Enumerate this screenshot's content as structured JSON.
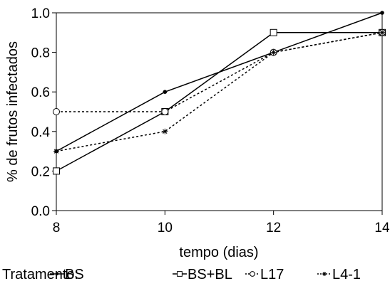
{
  "chart_data": {
    "type": "line",
    "x": [
      8,
      10,
      12,
      14
    ],
    "xlabel": "tempo (dias)",
    "ylabel": "% de frutos infectados",
    "xlim": [
      8,
      14
    ],
    "ylim": [
      0.0,
      1.0
    ],
    "xticks": [
      8,
      10,
      12,
      14
    ],
    "yticks": [
      0.0,
      0.2,
      0.4,
      0.6,
      0.8,
      1.0
    ],
    "xtick_labels": [
      "8",
      "10",
      "12",
      "14"
    ],
    "ytick_labels": [
      "0.0",
      "0.2",
      "0.4",
      "0.6",
      "0.8",
      "1.0"
    ],
    "grid": false,
    "legend": {
      "title": "Tratamento:",
      "placement": "bottom"
    },
    "series": [
      {
        "name": "BS",
        "values": [
          0.3,
          0.6,
          0.8,
          1.0
        ],
        "line": "solid",
        "marker": "dot",
        "color": "#000000"
      },
      {
        "name": "BS+BL",
        "values": [
          0.2,
          0.5,
          0.9,
          0.9
        ],
        "line": "solid",
        "marker": "square-hollow",
        "color": "#000000"
      },
      {
        "name": "L17",
        "values": [
          0.5,
          0.5,
          0.8,
          0.9
        ],
        "line": "dotted",
        "marker": "circle-hollow",
        "color": "#000000"
      },
      {
        "name": "L4-1",
        "values": [
          0.3,
          0.4,
          0.8,
          0.9
        ],
        "line": "dotted",
        "marker": "star",
        "color": "#000000"
      }
    ]
  }
}
